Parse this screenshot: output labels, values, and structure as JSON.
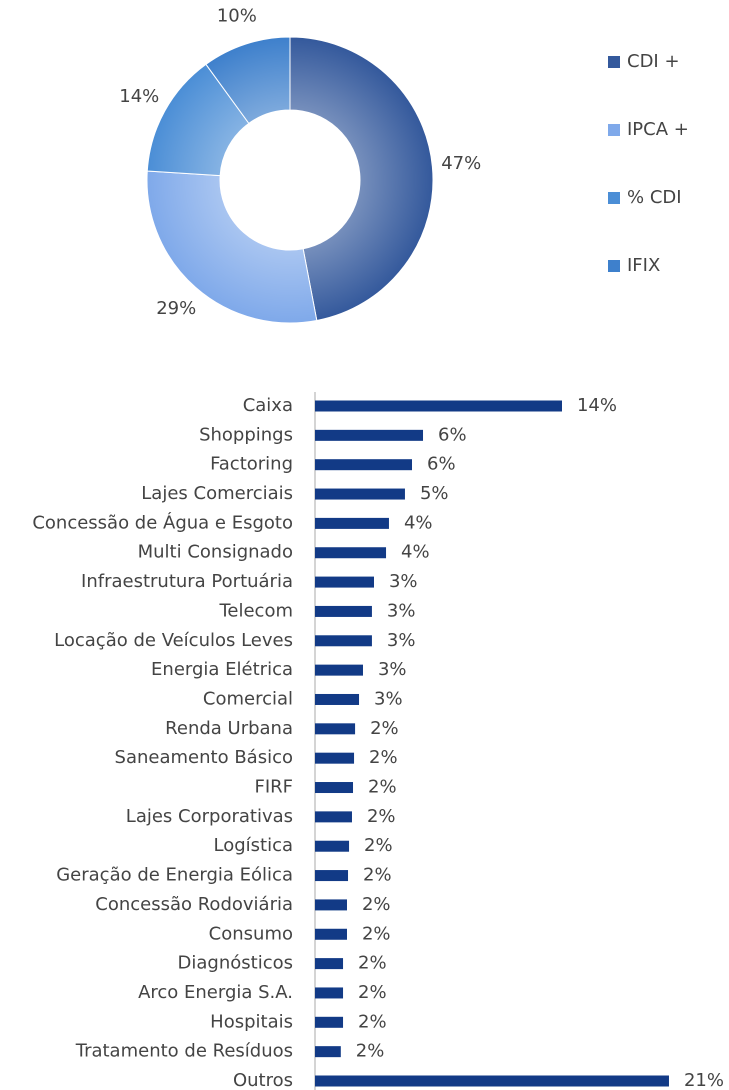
{
  "chart_data": [
    {
      "type": "donut",
      "categories": [
        "CDI +",
        "IPCA +",
        "% CDI",
        "IFIX"
      ],
      "values": [
        47,
        29,
        14,
        10
      ],
      "value_labels": [
        "47%",
        "29%",
        "14%",
        "10%"
      ],
      "colors": [
        "#34599c",
        "#7fa9ea",
        "#4b8ed6",
        "#3e80cc"
      ],
      "legend": "right"
    },
    {
      "type": "hbar",
      "categories": [
        "Caixa",
        "Shoppings",
        "Factoring",
        "Lajes Comerciais",
        "Concessão de Água e Esgoto",
        "Multi Consignado",
        "Infraestrutura Portuária",
        "Telecom",
        "Locação de Veículos Leves",
        "Energia Elétrica",
        "Comercial",
        "Renda Urbana",
        "Saneamento Básico",
        "FIRF",
        "Lajes Corporativas",
        "Logística",
        "Geração de Energia Eólica",
        "Concessão Rodoviária",
        "Consumo",
        "Diagnósticos",
        "Arco Energia S.A.",
        "Hospitais",
        "Tratamento de Resíduos",
        "Outros"
      ],
      "values": [
        14.36,
        6.28,
        5.64,
        5.23,
        4.3,
        4.13,
        3.43,
        3.31,
        3.31,
        2.79,
        2.56,
        2.33,
        2.27,
        2.21,
        2.15,
        1.98,
        1.92,
        1.86,
        1.86,
        1.63,
        1.63,
        1.63,
        1.5,
        20.58
      ],
      "value_labels": [
        "14%",
        "6%",
        "6%",
        "5%",
        "4%",
        "4%",
        "3%",
        "3%",
        "3%",
        "3%",
        "3%",
        "2%",
        "2%",
        "2%",
        "2%",
        "2%",
        "2%",
        "2%",
        "2%",
        "2%",
        "2%",
        "2%",
        "2%",
        "21%"
      ],
      "color": "#123a86",
      "xlim": [
        0,
        22
      ]
    }
  ]
}
